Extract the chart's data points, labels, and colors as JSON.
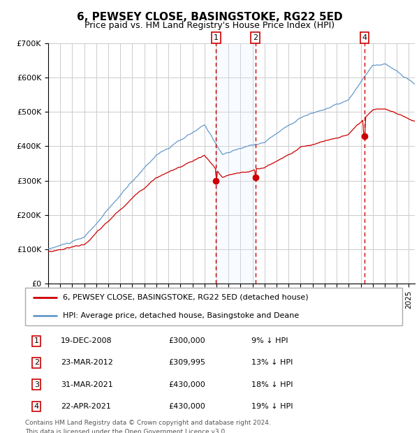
{
  "title": "6, PEWSEY CLOSE, BASINGSTOKE, RG22 5ED",
  "subtitle": "Price paid vs. HM Land Registry's House Price Index (HPI)",
  "background_color": "#ffffff",
  "plot_bg_color": "#ffffff",
  "grid_color": "#cccccc",
  "red_line_color": "#cc0000",
  "blue_line_color": "#6699cc",
  "shade_color": "#ddeeff",
  "vline_color": "#cc0000",
  "ylim": [
    0,
    700000
  ],
  "xlim_start": 1995.0,
  "xlim_end": 2025.5,
  "yticks": [
    0,
    100000,
    200000,
    300000,
    400000,
    500000,
    600000,
    700000
  ],
  "ytick_labels": [
    "£0",
    "£100K",
    "£200K",
    "£300K",
    "£400K",
    "£500K",
    "£600K",
    "£700K"
  ],
  "transactions": [
    {
      "id": 1,
      "date": "19-DEC-2008",
      "price": 300000,
      "pct": "9%",
      "year": 2008.96
    },
    {
      "id": 2,
      "date": "23-MAR-2012",
      "price": 309995,
      "pct": "13%",
      "year": 2012.23
    },
    {
      "id": 3,
      "date": "31-MAR-2021",
      "price": 430000,
      "pct": "18%",
      "year": 2021.25
    },
    {
      "id": 4,
      "date": "22-APR-2021",
      "price": 430000,
      "pct": "19%",
      "year": 2021.31
    }
  ],
  "vline_ids": [
    1,
    2,
    4
  ],
  "dot_ids": [
    1,
    2,
    4
  ],
  "legend_red_label": "6, PEWSEY CLOSE, BASINGSTOKE, RG22 5ED (detached house)",
  "legend_blue_label": "HPI: Average price, detached house, Basingstoke and Deane",
  "footer1": "Contains HM Land Registry data © Crown copyright and database right 2024.",
  "footer2": "This data is licensed under the Open Government Licence v3.0.",
  "title_fontsize": 11,
  "subtitle_fontsize": 9,
  "tick_fontsize": 8,
  "legend_fontsize": 8,
  "table_fontsize": 8,
  "footer_fontsize": 6.5
}
